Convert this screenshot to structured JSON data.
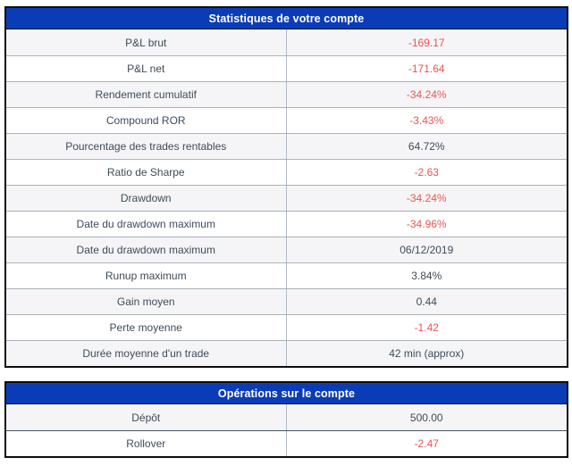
{
  "colors": {
    "header_bg": "#0b3cb8",
    "header_text": "#ffffff",
    "row_alt_bg": "#f5f5f7",
    "row_bg": "#ffffff",
    "negative_value": "#ef5350",
    "text": "#3e4c59",
    "outer_border": "#0d0d0d",
    "divider": "#a9b1bb",
    "divider_dark": "#46545e"
  },
  "tables": [
    {
      "title": "Statistiques de votre compte",
      "rows": [
        {
          "label": "P&L brut",
          "value": "-169.17",
          "negative": true
        },
        {
          "label": "P&L net",
          "value": "-171.64",
          "negative": true
        },
        {
          "label": "Rendement cumulatif",
          "value": "-34.24%",
          "negative": true
        },
        {
          "label": "Compound ROR",
          "value": "-3.43%",
          "negative": true
        },
        {
          "label": "Pourcentage des trades rentables",
          "value": "64.72%",
          "negative": false
        },
        {
          "label": "Ratio de Sharpe",
          "value": "-2.63",
          "negative": true
        },
        {
          "label": "Drawdown",
          "value": "-34.24%",
          "negative": true
        },
        {
          "label": "Date du drawdown maximum",
          "value": "-34.96%",
          "negative": true
        },
        {
          "label": "Date du drawdown maximum",
          "value": "06/12/2019",
          "negative": false
        },
        {
          "label": "Runup maximum",
          "value": "3.84%",
          "negative": false
        },
        {
          "label": "Gain moyen",
          "value": "0.44",
          "negative": false
        },
        {
          "label": "Perte moyenne",
          "value": "-1.42",
          "negative": true
        },
        {
          "label": "Durée moyenne d'un trade",
          "value": "42 min (approx)",
          "negative": false
        }
      ]
    },
    {
      "title": "Opérations sur le compte",
      "rows": [
        {
          "label": "Dépôt",
          "value": "500.00",
          "negative": false
        },
        {
          "label": "Rollover",
          "value": "-2.47",
          "negative": true
        }
      ]
    }
  ]
}
